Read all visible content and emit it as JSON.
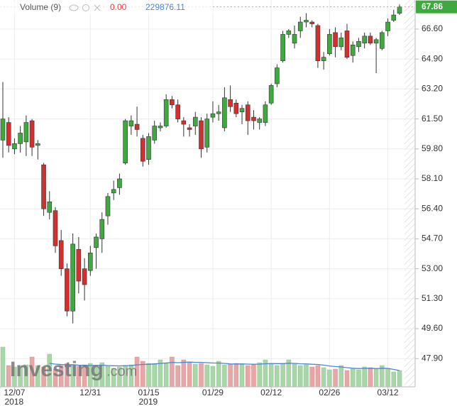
{
  "chart_data": {
    "type": "candlestick",
    "categories": [
      null,
      null,
      "12/07",
      null,
      null,
      null,
      null,
      null,
      null,
      null,
      null,
      null,
      null,
      null,
      null,
      "12/31",
      null,
      null,
      null,
      null,
      null,
      null,
      null,
      null,
      null,
      "01/15",
      null,
      null,
      null,
      null,
      null,
      null,
      null,
      null,
      null,
      null,
      "01/29",
      null,
      null,
      null,
      null,
      null,
      null,
      null,
      null,
      null,
      "02/12",
      null,
      null,
      null,
      null,
      null,
      null,
      null,
      null,
      null,
      "02/26",
      null,
      null,
      null,
      null,
      null,
      null,
      null,
      null,
      null,
      "03/12",
      null,
      null
    ],
    "year_labels": [
      "2018",
      "2019"
    ],
    "open": [
      60.3,
      61.3,
      59.8,
      60.1,
      60.2,
      61.4,
      60.0,
      58.9,
      56.2,
      56.3,
      54.6,
      53.0,
      50.6,
      54.1,
      53.0,
      52.9,
      54.2,
      54.7,
      56.0,
      57.3,
      57.6,
      59.0,
      61.1,
      61.2,
      60.4,
      59.2,
      60.3,
      61.0,
      61.1,
      62.6,
      62.3,
      61.4,
      61.0,
      61.1,
      61.4,
      59.9,
      61.6,
      61.8,
      61.0,
      62.6,
      62.4,
      61.9,
      62.3,
      61.6,
      61.3,
      61.3,
      62.4,
      63.5,
      64.8,
      66.3,
      65.8,
      66.5,
      67.0,
      67.0,
      66.8,
      64.8,
      65.2,
      66.4,
      65.6,
      66.5,
      65.1,
      65.6,
      65.8,
      66.2,
      65.8,
      65.5,
      66.5,
      67.1,
      67.5
    ],
    "high": [
      63.6,
      61.6,
      60.4,
      61.1,
      61.7,
      61.5,
      60.3,
      59.0,
      57.4,
      56.5,
      55.2,
      53.3,
      55.0,
      54.8,
      53.6,
      54.3,
      55.0,
      56.2,
      57.3,
      58.0,
      58.4,
      61.5,
      61.7,
      62.2,
      60.6,
      60.7,
      61.4,
      61.3,
      62.9,
      62.8,
      62.6,
      61.6,
      61.2,
      61.9,
      61.6,
      61.8,
      62.5,
      62.3,
      63.3,
      63.4,
      62.6,
      62.3,
      62.5,
      62.0,
      61.6,
      62.5,
      63.5,
      64.6,
      66.5,
      66.6,
      66.8,
      67.3,
      67.5,
      67.1,
      66.9,
      65.3,
      66.6,
      66.7,
      66.4,
      66.9,
      65.9,
      66.1,
      66.4,
      66.4,
      66.1,
      66.5,
      67.2,
      67.7,
      68.0
    ],
    "low": [
      59.3,
      59.6,
      59.5,
      59.6,
      59.4,
      59.4,
      59.2,
      56.0,
      55.8,
      53.9,
      52.6,
      50.3,
      49.9,
      51.6,
      51.2,
      52.6,
      53.0,
      53.9,
      55.5,
      56.9,
      57.2,
      58.9,
      60.6,
      60.5,
      58.8,
      58.9,
      60.1,
      60.8,
      61.0,
      62.1,
      61.3,
      60.5,
      60.5,
      60.6,
      59.3,
      59.6,
      61.3,
      61.4,
      60.8,
      61.9,
      61.6,
      61.2,
      60.6,
      60.9,
      60.9,
      61.1,
      62.3,
      63.3,
      64.7,
      66.1,
      65.5,
      66.1,
      66.7,
      66.7,
      64.4,
      64.3,
      65.1,
      65.0,
      65.4,
      64.9,
      64.7,
      65.3,
      65.5,
      65.7,
      64.1,
      65.4,
      66.2,
      67.0,
      67.4
    ],
    "close": [
      61.5,
      60.0,
      60.1,
      60.7,
      61.3,
      59.9,
      60.1,
      56.4,
      56.8,
      54.3,
      53.0,
      50.6,
      54.4,
      52.3,
      52.1,
      53.9,
      54.8,
      55.8,
      57.1,
      57.5,
      58.1,
      61.4,
      61.4,
      60.9,
      59.1,
      60.5,
      61.1,
      61.1,
      62.6,
      62.3,
      61.5,
      61.2,
      60.9,
      61.6,
      59.8,
      61.5,
      61.8,
      61.9,
      62.7,
      62.2,
      61.8,
      62.1,
      61.4,
      61.4,
      61.5,
      62.3,
      63.4,
      64.4,
      66.3,
      66.5,
      66.3,
      67.0,
      67.1,
      66.9,
      64.8,
      65.0,
      66.3,
      65.6,
      66.1,
      65.0,
      65.7,
      65.9,
      66.2,
      65.8,
      66.0,
      66.4,
      67.0,
      67.4,
      67.86
    ],
    "up_color": "#3fa93f",
    "down_color": "#d32f2f",
    "ylim": [
      46.3,
      68.25
    ],
    "yticks": [
      {
        "value": 47.9,
        "label": "47.90"
      },
      {
        "value": 49.6,
        "label": "49.60"
      },
      {
        "value": 51.3,
        "label": "51.30"
      },
      {
        "value": 53.0,
        "label": "53.00"
      },
      {
        "value": 54.7,
        "label": "54.70"
      },
      {
        "value": 56.4,
        "label": "56.40"
      },
      {
        "value": 58.1,
        "label": "58.10"
      },
      {
        "value": 59.8,
        "label": "59.80"
      },
      {
        "value": 61.5,
        "label": "61.50"
      },
      {
        "value": 63.2,
        "label": "63.20"
      },
      {
        "value": 64.9,
        "label": "64.90"
      },
      {
        "value": 66.6,
        "label": "66.60"
      }
    ],
    "grid": true,
    "volume": [
      560000,
      300000,
      280000,
      300000,
      310000,
      420000,
      300000,
      280000,
      460000,
      250000,
      300000,
      330000,
      300000,
      290000,
      310000,
      330000,
      280000,
      340000,
      290000,
      260000,
      280000,
      300000,
      310000,
      420000,
      360000,
      330000,
      330000,
      380000,
      340000,
      420000,
      300000,
      380000,
      350000,
      320000,
      330000,
      310000,
      290000,
      360000,
      310000,
      320000,
      330000,
      320000,
      300000,
      310000,
      340000,
      380000,
      320000,
      300000,
      330000,
      380000,
      320000,
      300000,
      310000,
      280000,
      300000,
      270000,
      240000,
      250000,
      300000,
      230000,
      250000,
      240000,
      280000,
      270000,
      250000,
      300000,
      260000,
      210000,
      230000
    ],
    "volume_ma": [
      null,
      null,
      null,
      null,
      null,
      null,
      null,
      null,
      330000,
      320000,
      315000,
      310000,
      312000,
      305000,
      303000,
      300000,
      302000,
      305000,
      300000,
      297000,
      295000,
      298000,
      300000,
      310000,
      315000,
      318000,
      322000,
      330000,
      335000,
      345000,
      340000,
      345000,
      348000,
      345000,
      345000,
      340000,
      336000,
      335000,
      330000,
      323000,
      322000,
      323000,
      320000,
      318000,
      320000,
      325000,
      328000,
      327000,
      327000,
      333000,
      330000,
      325000,
      323000,
      318000,
      315000,
      306000,
      294000,
      286000,
      280000,
      270000,
      262000,
      258000,
      260000,
      262000,
      257000,
      262000,
      260000,
      245000,
      229876.11
    ],
    "volume_lim": [
      0,
      600000
    ],
    "volume_up_color": "#a9d6a9",
    "volume_down_color": "#e8a6a6",
    "volume_ma_color": "#4a86d0",
    "volume_title": "Volume (9)",
    "volume_change": {
      "value": 0,
      "label": "0.00"
    },
    "logo": "Investing",
    "logo_suffix": ".com"
  }
}
